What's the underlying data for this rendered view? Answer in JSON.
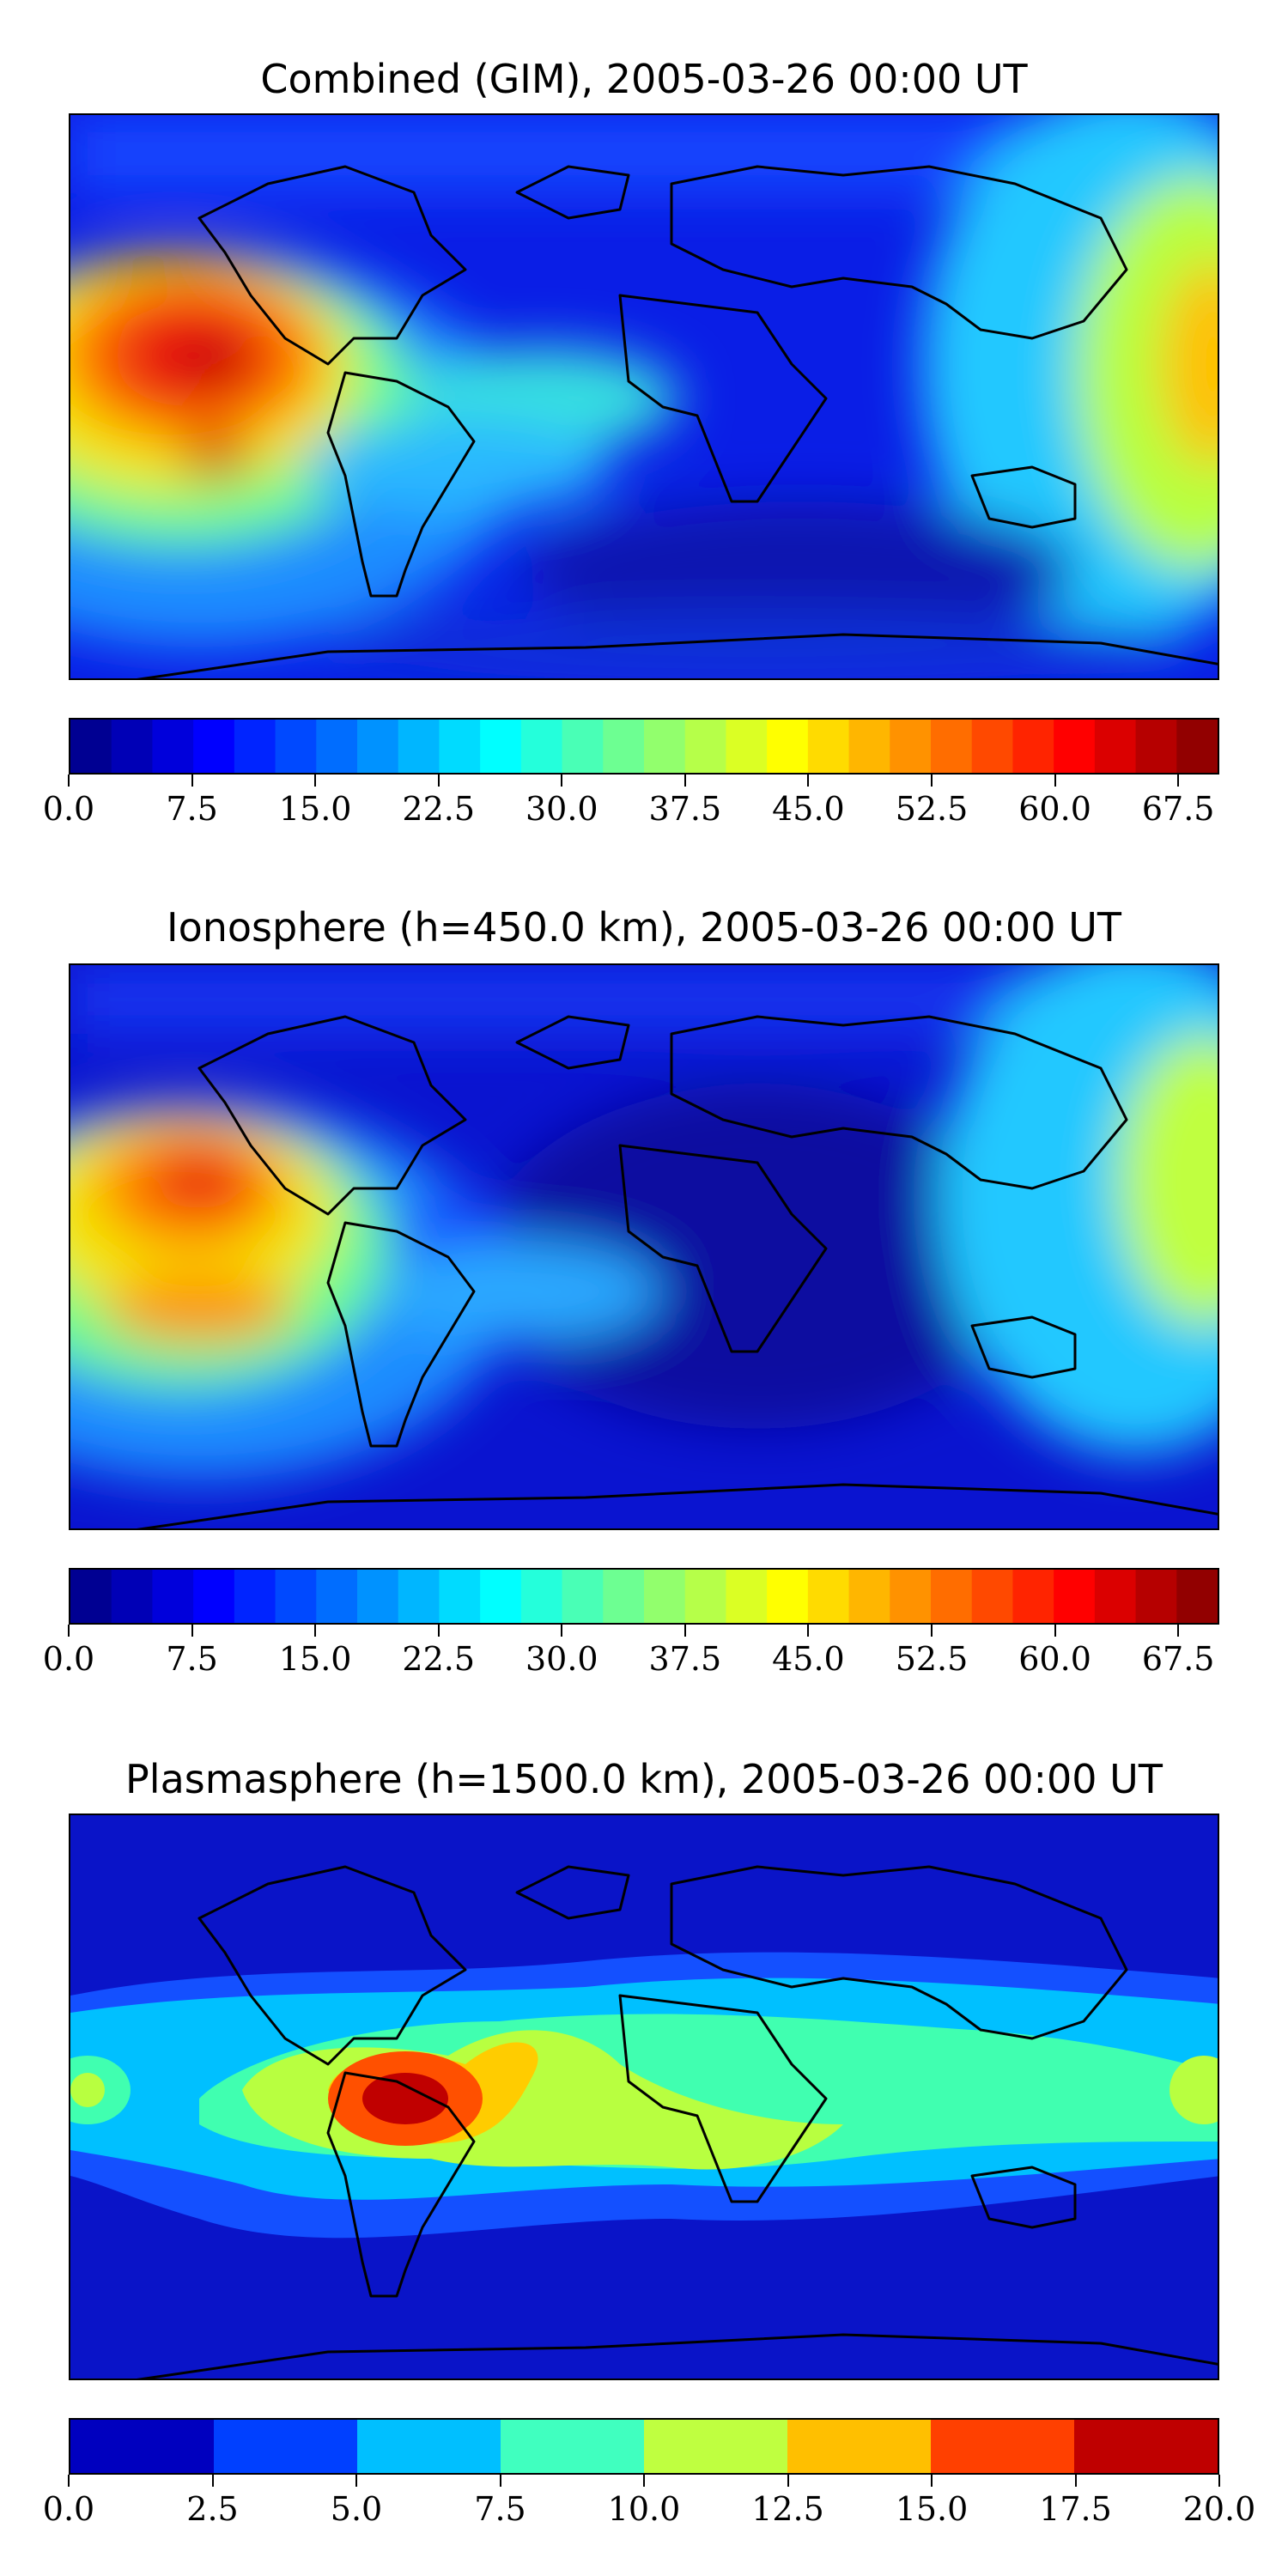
{
  "panels": [
    {
      "title": "Combined (GIM), 2005-03-26 00:00 UT",
      "colorbar": {
        "min": 0.0,
        "max": 70.0,
        "levels": 28,
        "tick_labels": [
          "0.0",
          "7.5",
          "15.0",
          "22.5",
          "30.0",
          "37.5",
          "45.0",
          "52.5",
          "60.0",
          "67.5"
        ],
        "tick_values": [
          0,
          7.5,
          15,
          22.5,
          30,
          37.5,
          45,
          52.5,
          60,
          67.5
        ]
      },
      "colormap": "jet"
    },
    {
      "title": "Ionosphere  (h=450.0 km), 2005-03-26 00:00 UT",
      "colorbar": {
        "min": 0.0,
        "max": 70.0,
        "levels": 28,
        "tick_labels": [
          "0.0",
          "7.5",
          "15.0",
          "22.5",
          "30.0",
          "37.5",
          "45.0",
          "52.5",
          "60.0",
          "67.5"
        ],
        "tick_values": [
          0,
          7.5,
          15,
          22.5,
          30,
          37.5,
          45,
          52.5,
          60,
          67.5
        ]
      },
      "colormap": "jet"
    },
    {
      "title": "Plasmasphere (h=1500.0 km), 2005-03-26 00:00 UT",
      "colorbar": {
        "min": 0.0,
        "max": 20.0,
        "levels": 8,
        "tick_labels": [
          "0.0",
          "2.5",
          "5.0",
          "7.5",
          "10.0",
          "12.5",
          "15.0",
          "17.5",
          "20.0"
        ],
        "tick_values": [
          0,
          2.5,
          5,
          7.5,
          10,
          12.5,
          15,
          17.5,
          20
        ]
      },
      "colormap": "jet"
    }
  ]
}
